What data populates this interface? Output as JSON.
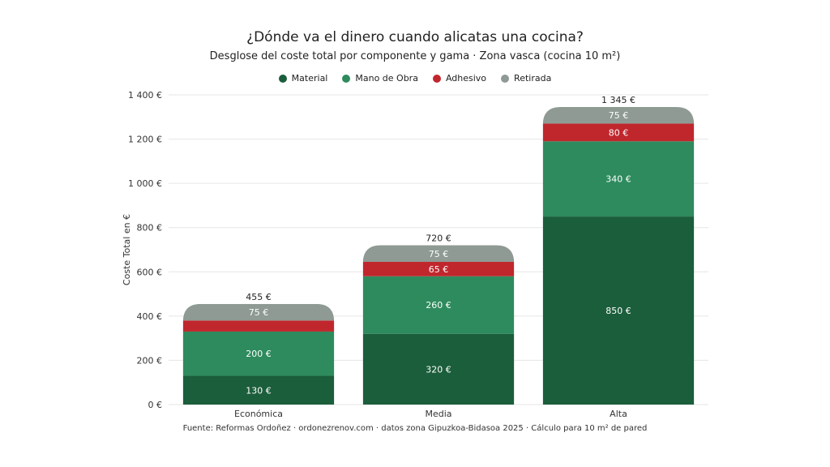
{
  "chart_data": {
    "type": "bar",
    "stacked": true,
    "title": "¿Dónde va el dinero cuando alicatas una cocina?",
    "subtitle": "Desglose del coste total por componente y gama · Zona vasca (cocina 10 m²)",
    "ylabel": "Coste Total en €",
    "xlabel": "",
    "ylim": [
      0,
      1400
    ],
    "yticks": [
      0,
      200,
      400,
      600,
      800,
      1000,
      1200,
      1400
    ],
    "ytick_labels": [
      "0 €",
      "200 €",
      "400 €",
      "600 €",
      "800 €",
      "1 000 €",
      "1 200 €",
      "1 400 €"
    ],
    "grid": true,
    "legend_position": "top-center",
    "categories": [
      "Económica",
      "Media",
      "Alta"
    ],
    "series": [
      {
        "name": "Material",
        "color": "#1b5e3b",
        "values": [
          130,
          320,
          850
        ],
        "labels": [
          "130 €",
          "320 €",
          "850 €"
        ]
      },
      {
        "name": "Mano de Obra",
        "color": "#2e8b5e",
        "values": [
          200,
          260,
          340
        ],
        "labels": [
          "200 €",
          "260 €",
          "340 €"
        ]
      },
      {
        "name": "Adhesivo",
        "color": "#c0272d",
        "values": [
          50,
          65,
          80
        ],
        "labels": [
          "",
          "65 €",
          "80 €"
        ]
      },
      {
        "name": "Retirada",
        "color": "#8e9a93",
        "values": [
          75,
          75,
          75
        ],
        "labels": [
          "75 €",
          "75 €",
          "75 €"
        ]
      }
    ],
    "totals": [
      455,
      720,
      1345
    ],
    "total_labels": [
      "455 €",
      "720 €",
      "1 345 €"
    ],
    "source": "Fuente: Reformas Ordoñez · ordonezrenov.com · datos zona Gipuzkoa-Bidasoa 2025 · Cálculo para 10 m² de pared"
  }
}
